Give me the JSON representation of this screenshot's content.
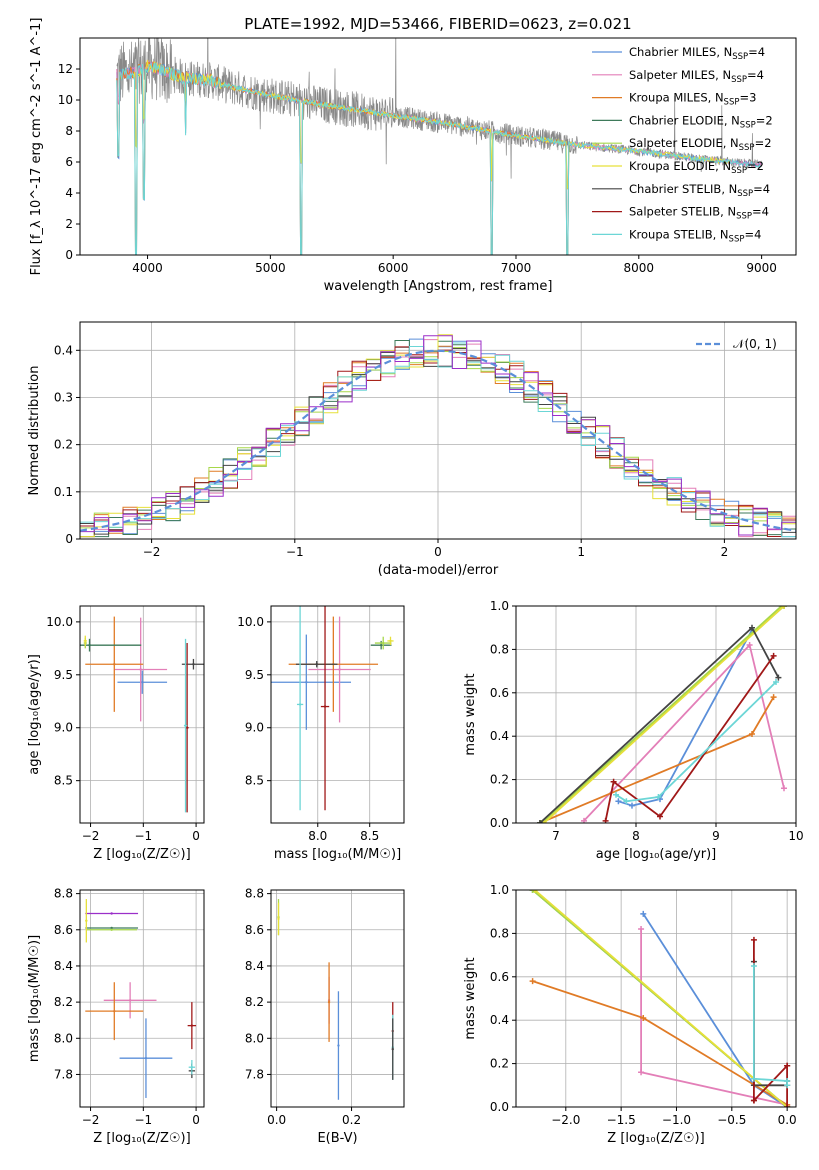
{
  "title": "PLATE=1992, MJD=53466, FIBERID=0623, z=0.021",
  "colors": {
    "chabrier_miles": "#5b8fd9",
    "salpeter_miles": "#e37fb8",
    "kroupa_miles": "#e07b26",
    "chabrier_elodie": "#3e7a5a",
    "salpeter_elodie": "#a7d84a",
    "kroupa_elodie": "#e6e03a",
    "chabrier_stelib": "#444444",
    "salpeter_stelib": "#a01818",
    "kroupa_stelib": "#6cd6d6",
    "purple_extra": "#9b2fc9",
    "data_gray": "#888888",
    "normal_curve": "#5b8fd9",
    "grid": "#b0b0b0"
  },
  "chart_data": [
    {
      "id": "spectrum",
      "type": "line",
      "xlabel": "wavelength [Angstrom, rest frame]",
      "ylabel": "Flux [f_λ 10^-17 erg cm^-2 s^-1 A^-1]",
      "xlim": [
        3450,
        9280
      ],
      "ylim": [
        0,
        14
      ],
      "xticks": [
        "4000",
        "5000",
        "6000",
        "7000",
        "8000",
        "9000"
      ],
      "yticks": [
        "0",
        "2",
        "4",
        "6",
        "8",
        "10",
        "12"
      ],
      "grid": false,
      "legend_position": "top-right",
      "legend": [
        {
          "label": "Chabrier MILES, N",
          "sub": "SSP",
          "eq": "=4",
          "color": "#5b8fd9"
        },
        {
          "label": "Salpeter MILES, N",
          "sub": "SSP",
          "eq": "=4",
          "color": "#e37fb8"
        },
        {
          "label": "Kroupa MILES, N",
          "sub": "SSP",
          "eq": "=3",
          "color": "#e07b26"
        },
        {
          "label": "Chabrier ELODIE, N",
          "sub": "SSP",
          "eq": "=2",
          "color": "#3e7a5a"
        },
        {
          "label": "Salpeter ELODIE, N",
          "sub": "SSP",
          "eq": "=2",
          "color": "#a7d84a"
        },
        {
          "label": "Kroupa ELODIE, N",
          "sub": "SSP",
          "eq": "=2",
          "color": "#e6e03a"
        },
        {
          "label": "Chabrier STELIB, N",
          "sub": "SSP",
          "eq": "=4",
          "color": "#444444"
        },
        {
          "label": "Salpeter STELIB, N",
          "sub": "SSP",
          "eq": "=4",
          "color": "#a01818"
        },
        {
          "label": "Kroupa STELIB, N",
          "sub": "SSP",
          "eq": "=4",
          "color": "#6cd6d6"
        }
      ],
      "continuum": {
        "x": [
          3750,
          3900,
          4000,
          4100,
          4300,
          4500,
          4700,
          5000,
          5500,
          6000,
          6500,
          7000,
          7500,
          8000,
          8500,
          9000
        ],
        "y": [
          11.6,
          11.8,
          12.2,
          12.0,
          11.4,
          11.3,
          10.8,
          10.3,
          9.6,
          9.0,
          8.4,
          7.7,
          7.1,
          6.7,
          6.2,
          5.8
        ]
      },
      "model_dips": [
        {
          "x": 3760,
          "depth": 0.45
        },
        {
          "x": 3905,
          "depth": 1.0
        },
        {
          "x": 3970,
          "depth": 0.7
        },
        {
          "x": 4310,
          "depth": 0.3
        },
        {
          "x": 5250,
          "depth": 1.0
        },
        {
          "x": 6800,
          "depth": 1.0
        },
        {
          "x": 7420,
          "depth": 1.0
        }
      ]
    },
    {
      "id": "residuals",
      "type": "histogram",
      "xlabel": "(data-model)/error",
      "ylabel": "Normed distribution",
      "xlim": [
        -2.5,
        2.5
      ],
      "ylim": [
        0,
        0.46
      ],
      "xticks": [
        -2,
        -1,
        0,
        1,
        2
      ],
      "yticks": [
        0.0,
        0.1,
        0.2,
        0.3,
        0.4
      ],
      "grid": true,
      "legend_position": "top-right",
      "legend": [
        {
          "label": "𝒩(0, 1)",
          "style": "dashed",
          "color": "#5b8fd9"
        }
      ],
      "bin_width": 0.1
    },
    {
      "id": "age_vs_Z",
      "type": "errorbar",
      "xlabel": "Z [log₁₀(Z/Z☉)]",
      "ylabel": "age  [log₁₀(age/yr)]",
      "xlim": [
        -2.2,
        0.15
      ],
      "ylim": [
        8.1,
        10.15
      ],
      "xticks": [
        "-2",
        "-1",
        "0"
      ],
      "yticks": [
        "8.5",
        "9.0",
        "9.5",
        "10.0"
      ],
      "grid": true,
      "points": [
        {
          "x": -1.02,
          "xerr": 0.47,
          "y": 9.43,
          "yerr": 0.11,
          "color": "#5b8fd9"
        },
        {
          "x": -1.05,
          "xerr": 0.5,
          "y": 9.55,
          "yerr": 0.49,
          "color": "#e37fb8"
        },
        {
          "x": -1.55,
          "xerr": 0.55,
          "y": 9.6,
          "yerr": 0.45,
          "color": "#e07b26"
        },
        {
          "x": -2.02,
          "xerr": 0.98,
          "y": 9.78,
          "yerr": 0.06,
          "color": "#3e7a5a"
        },
        {
          "x": -2.1,
          "xerr": 0.03,
          "y": 9.8,
          "yerr": 0.05,
          "color": "#a7d84a"
        },
        {
          "x": -2.1,
          "xerr": 0.03,
          "y": 9.82,
          "yerr": 0.05,
          "color": "#e6e03a"
        },
        {
          "x": -0.05,
          "xerr": 0.22,
          "y": 9.6,
          "yerr": 0.05,
          "color": "#444444"
        },
        {
          "x": -0.17,
          "xerr": 0.03,
          "y": 9.0,
          "yerr": 0.8,
          "color": "#a01818"
        },
        {
          "x": -0.2,
          "xerr": 0.03,
          "y": 9.02,
          "yerr": 0.82,
          "color": "#6cd6d6"
        }
      ]
    },
    {
      "id": "age_vs_mass",
      "type": "errorbar",
      "xlabel": "mass [log₁₀(M/M☉)]",
      "ylabel": "",
      "xlim": [
        7.55,
        8.83
      ],
      "ylim": [
        8.1,
        10.15
      ],
      "xticks": [
        "8.0",
        "8.5"
      ],
      "yticks": [
        "8.5",
        "9.0",
        "9.5",
        "10.0"
      ],
      "grid": true,
      "points": [
        {
          "x": 7.89,
          "xerr": 0.43,
          "y": 9.43,
          "yerr": 0.45,
          "color": "#5b8fd9"
        },
        {
          "x": 8.21,
          "xerr": 0.3,
          "y": 9.55,
          "yerr": 0.5,
          "color": "#e37fb8"
        },
        {
          "x": 8.15,
          "xerr": 0.43,
          "y": 9.6,
          "yerr": 0.45,
          "color": "#e07b26"
        },
        {
          "x": 7.99,
          "xerr": 0.2,
          "y": 9.6,
          "yerr": 0.03,
          "color": "#444444"
        },
        {
          "x": 8.07,
          "xerr": 0.04,
          "y": 9.2,
          "yerr": 0.98,
          "color": "#a01818"
        },
        {
          "x": 7.83,
          "xerr": 0.03,
          "y": 9.22,
          "yerr": 1.0,
          "color": "#6cd6d6"
        },
        {
          "x": 8.61,
          "xerr": 0.1,
          "y": 9.78,
          "yerr": 0.04,
          "color": "#3e7a5a"
        },
        {
          "x": 8.63,
          "xerr": 0.08,
          "y": 9.8,
          "yerr": 0.06,
          "color": "#a7d84a"
        },
        {
          "x": 8.7,
          "xerr": 0.03,
          "y": 9.82,
          "yerr": 0.04,
          "color": "#e6e03a"
        }
      ]
    },
    {
      "id": "massweight_vs_age",
      "type": "line",
      "xlabel": "age  [log₁₀(age/yr)]",
      "ylabel": "mass weight",
      "xlim": [
        6.5,
        10
      ],
      "ylim": [
        0,
        1
      ],
      "xticks": [
        "7",
        "8",
        "9",
        "10"
      ],
      "yticks": [
        "0.0",
        "0.2",
        "0.4",
        "0.6",
        "0.8",
        "1.0"
      ],
      "grid": true,
      "series": [
        {
          "color": "#5b8fd9",
          "x": [
            7.78,
            7.95,
            8.3,
            9.45
          ],
          "y": [
            0.1,
            0.08,
            0.11,
            0.89
          ]
        },
        {
          "color": "#e37fb8",
          "x": [
            7.35,
            9.42,
            9.85
          ],
          "y": [
            0.01,
            0.82,
            0.16
          ]
        },
        {
          "color": "#e07b26",
          "x": [
            6.8,
            9.45,
            9.72
          ],
          "y": [
            0.0,
            0.41,
            0.58
          ]
        },
        {
          "color": "#3e7a5a",
          "x": [
            6.8,
            9.85
          ],
          "y": [
            0.0,
            1.0
          ]
        },
        {
          "color": "#a7d84a",
          "x": [
            6.82,
            9.82
          ],
          "y": [
            0.0,
            1.0
          ]
        },
        {
          "color": "#e6e03a",
          "x": [
            6.85,
            9.85
          ],
          "y": [
            0.0,
            1.0
          ]
        },
        {
          "color": "#444444",
          "x": [
            6.8,
            9.45,
            9.78
          ],
          "y": [
            0.0,
            0.9,
            0.67
          ]
        },
        {
          "color": "#a01818",
          "x": [
            7.62,
            7.72,
            8.3,
            9.72
          ],
          "y": [
            0.01,
            0.19,
            0.03,
            0.77
          ]
        },
        {
          "color": "#6cd6d6",
          "x": [
            7.75,
            7.88,
            8.28,
            9.75
          ],
          "y": [
            0.13,
            0.1,
            0.12,
            0.65
          ]
        }
      ]
    },
    {
      "id": "mass_vs_Z",
      "type": "errorbar",
      "xlabel": "Z [log₁₀(Z/Z☉)]",
      "ylabel": "mass [log₁₀(M/M☉)]",
      "xlim": [
        -2.2,
        0.15
      ],
      "ylim": [
        7.62,
        8.82
      ],
      "xticks": [
        "-2",
        "-1",
        "0"
      ],
      "yticks": [
        "7.8",
        "8.0",
        "8.2",
        "8.4",
        "8.6",
        "8.8"
      ],
      "grid": true,
      "points": [
        {
          "x": -0.95,
          "xerr": 0.5,
          "y": 7.89,
          "yerr": 0.22,
          "color": "#5b8fd9"
        },
        {
          "x": -1.25,
          "xerr": 0.5,
          "y": 8.21,
          "yerr": 0.1,
          "color": "#e37fb8"
        },
        {
          "x": -1.55,
          "xerr": 0.55,
          "y": 8.15,
          "yerr": 0.16,
          "color": "#e07b26"
        },
        {
          "x": -1.6,
          "xerr": 0.5,
          "y": 8.69,
          "yerr": 0.0,
          "color": "#9b2fc9"
        },
        {
          "x": -1.6,
          "xerr": 0.5,
          "y": 8.61,
          "yerr": 0.0,
          "color": "#3e7a5a"
        },
        {
          "x": -1.6,
          "xerr": 0.48,
          "y": 8.6,
          "yerr": 0.0,
          "color": "#a7d84a"
        },
        {
          "x": -2.08,
          "xerr": 0.02,
          "y": 8.65,
          "yerr": 0.12,
          "color": "#e6e03a"
        },
        {
          "x": -0.08,
          "xerr": 0.08,
          "y": 8.07,
          "yerr": 0.13,
          "color": "#a01818"
        },
        {
          "x": -0.08,
          "xerr": 0.06,
          "y": 7.82,
          "yerr": 0.04,
          "color": "#444444"
        },
        {
          "x": -0.08,
          "xerr": 0.06,
          "y": 7.84,
          "yerr": 0.04,
          "color": "#6cd6d6"
        }
      ]
    },
    {
      "id": "mass_vs_EBV",
      "type": "errorbar",
      "xlabel": "E(B-V)",
      "ylabel": "",
      "xlim": [
        -0.015,
        0.34
      ],
      "ylim": [
        7.62,
        8.82
      ],
      "xticks": [
        "0.0",
        "0.2"
      ],
      "yticks": [
        "7.8",
        "8.0",
        "8.2",
        "8.4",
        "8.6",
        "8.8"
      ],
      "grid": true,
      "points": [
        {
          "x": 0.005,
          "xerr": 0.0,
          "y": 8.67,
          "yerr": 0.1,
          "color": "#a7d84a"
        },
        {
          "x": 0.005,
          "xerr": 0.0,
          "y": 8.66,
          "yerr": 0.09,
          "color": "#e6e03a"
        },
        {
          "x": 0.14,
          "xerr": 0.0,
          "y": 8.21,
          "yerr": 0.13,
          "color": "#e37fb8"
        },
        {
          "x": 0.14,
          "xerr": 0.0,
          "y": 8.2,
          "yerr": 0.22,
          "color": "#e07b26"
        },
        {
          "x": 0.165,
          "xerr": 0.0,
          "y": 7.96,
          "yerr": 0.3,
          "color": "#5b8fd9"
        },
        {
          "x": 0.31,
          "xerr": 0.0,
          "y": 8.04,
          "yerr": 0.16,
          "color": "#a01818"
        },
        {
          "x": 0.31,
          "xerr": 0.0,
          "y": 7.95,
          "yerr": 0.18,
          "color": "#6cd6d6"
        },
        {
          "x": 0.31,
          "xerr": 0.0,
          "y": 7.94,
          "yerr": 0.17,
          "color": "#444444"
        }
      ]
    },
    {
      "id": "massweight_vs_Z",
      "type": "line",
      "xlabel": "Z [log₁₀(Z/Z☉)]",
      "ylabel": "mass weight",
      "xlim": [
        -2.45,
        0.08
      ],
      "ylim": [
        0,
        1
      ],
      "xticks": [
        "-2.0",
        "-1.5",
        "-1.0",
        "-0.5",
        "0.0"
      ],
      "yticks": [
        "0.0",
        "0.2",
        "0.4",
        "0.6",
        "0.8",
        "1.0"
      ],
      "grid": true,
      "series": [
        {
          "color": "#5b8fd9",
          "x": [
            -1.3,
            -0.3,
            -0.3,
            0.0
          ],
          "y": [
            0.89,
            0.1,
            0.1,
            0.0
          ]
        },
        {
          "color": "#e37fb8",
          "x": [
            -1.32,
            -1.32,
            0.0
          ],
          "y": [
            0.82,
            0.16,
            0.01
          ]
        },
        {
          "color": "#e07b26",
          "x": [
            -2.3,
            -1.3,
            0.0
          ],
          "y": [
            0.58,
            0.41,
            0.01
          ]
        },
        {
          "color": "#3e7a5a",
          "x": [
            -2.3,
            0.0
          ],
          "y": [
            1.0,
            0.0
          ]
        },
        {
          "color": "#a7d84a",
          "x": [
            -2.3,
            0.0
          ],
          "y": [
            1.0,
            0.0
          ]
        },
        {
          "color": "#e6e03a",
          "x": [
            -2.28,
            0.0
          ],
          "y": [
            1.0,
            0.0
          ]
        },
        {
          "color": "#444444",
          "x": [
            -0.3,
            -0.3,
            0.0,
            0.0
          ],
          "y": [
            0.67,
            0.1,
            0.1,
            0.12
          ]
        },
        {
          "color": "#a01818",
          "x": [
            -0.3,
            -0.3,
            -0.3,
            0.0,
            0.0,
            0.0
          ],
          "y": [
            0.77,
            0.03,
            0.03,
            0.19,
            0.19,
            0.0
          ]
        },
        {
          "color": "#6cd6d6",
          "x": [
            -0.3,
            -0.3,
            0.0,
            0.0
          ],
          "y": [
            0.65,
            0.13,
            0.12,
            0.1
          ]
        }
      ]
    }
  ]
}
